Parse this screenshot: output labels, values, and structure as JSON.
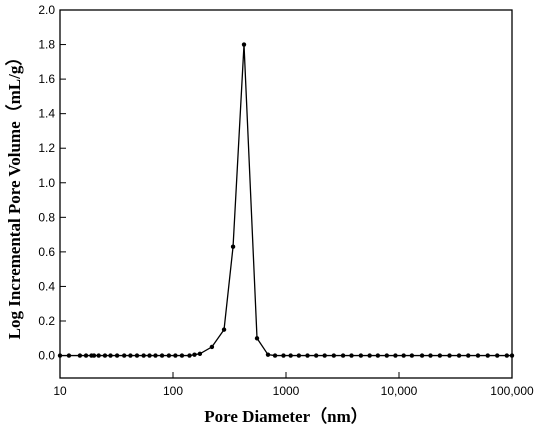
{
  "chart_data": {
    "type": "line",
    "x_label": "Pore Diameter（nm）",
    "y_label": "Log Incremental Pore Volume（mL/g）",
    "xscale": "log",
    "color": "#000000",
    "xlim": [
      10,
      100000
    ],
    "xticks": [
      10,
      100,
      1000,
      {
        "value": 10000,
        "label": "10,000"
      },
      {
        "value": 100000,
        "label": "100,000"
      }
    ],
    "ylim": [
      -0.13,
      2.0
    ],
    "yticks": [
      {
        "value": 0,
        "label": "0.0"
      },
      0.2,
      0.4,
      0.6,
      0.8,
      {
        "value": 1,
        "label": "1.0"
      },
      1.2,
      1.4,
      1.6,
      1.8,
      {
        "value": 2,
        "label": "2.0"
      }
    ],
    "x": [
      10,
      12,
      15,
      17,
      19,
      20,
      22,
      25,
      28,
      32,
      37,
      42,
      48,
      55,
      62,
      70,
      80,
      92,
      105,
      120,
      140,
      155,
      173,
      221,
      283,
      340,
      425,
      554,
      693,
      800,
      950,
      1100,
      1300,
      1550,
      1850,
      2200,
      2650,
      3200,
      3800,
      4600,
      5500,
      6500,
      7800,
      9300,
      11000,
      13000,
      16000,
      19000,
      23000,
      28000,
      34000,
      41000,
      50000,
      61000,
      74000,
      90000,
      100000
    ],
    "values": [
      0,
      0,
      0,
      0,
      0,
      0,
      0,
      0,
      0,
      0,
      0,
      0,
      0,
      0,
      0,
      0,
      0,
      0,
      0,
      0,
      0,
      0.005,
      0.01,
      0.05,
      0.15,
      0.63,
      1.8,
      0.1,
      0.005,
      0,
      0,
      0,
      0,
      0,
      0,
      0,
      0,
      0,
      0,
      0,
      0,
      0,
      0,
      0,
      0,
      0,
      0,
      0,
      0,
      0,
      0,
      0,
      0,
      0,
      0,
      0,
      0
    ]
  }
}
